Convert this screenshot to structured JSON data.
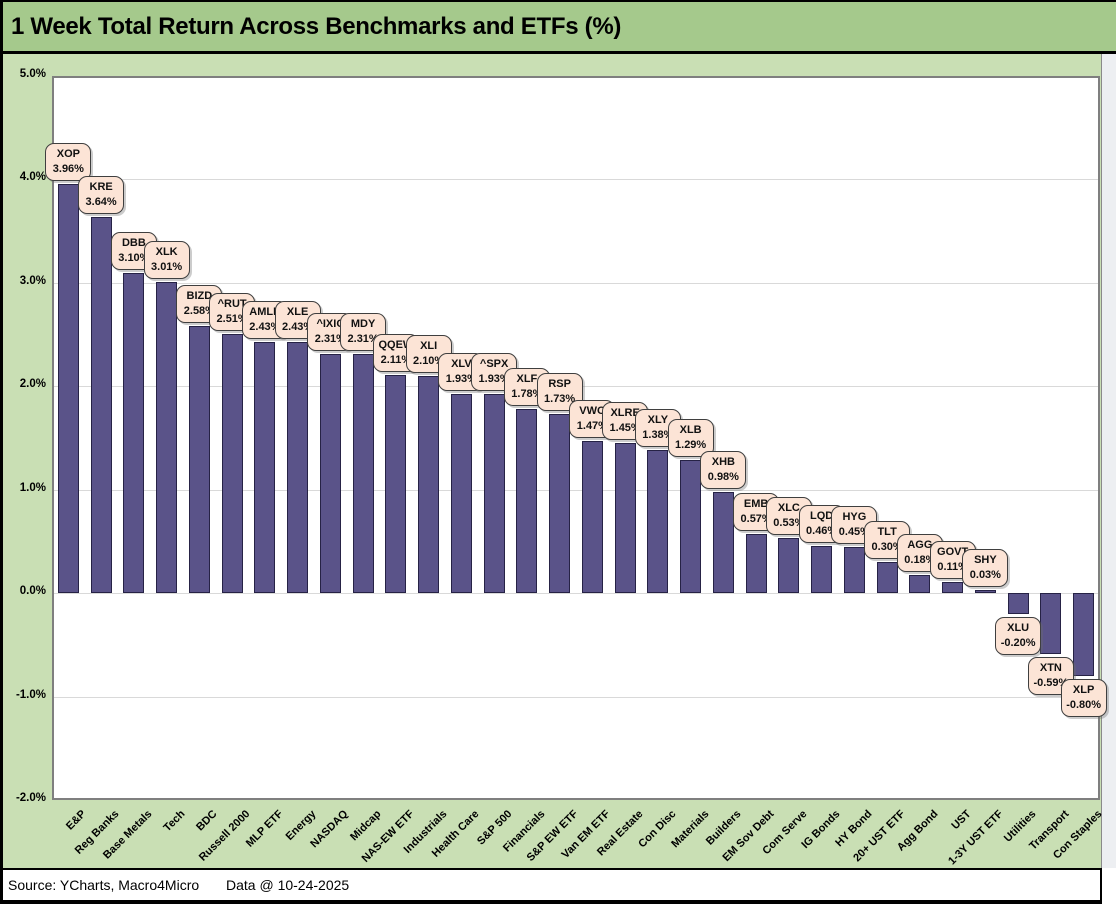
{
  "title": "1 Week Total Return Across Benchmarks and ETFs (%)",
  "footer": {
    "source": "Source: YCharts, Macro4Micro",
    "data_date": "Data @ 10-24-2025"
  },
  "colors": {
    "title_band_bg": "#a5c98c",
    "chart_bg": "#c9dfb4",
    "plot_bg": "#ffffff",
    "plot_border": "#7f7f7f",
    "gridline": "#d9d9d9",
    "bar_fill": "#5a5389",
    "bar_border": "#262245",
    "callout_bg": "#fce4d6",
    "callout_border": "#3f3f3f",
    "text": "#000000"
  },
  "chart_data": {
    "type": "bar",
    "title": "1 Week Total Return Across Benchmarks and ETFs (%)",
    "xlabel": "",
    "ylabel": "",
    "ylim": [
      -2.0,
      5.0
    ],
    "ytick_interval": 1.0,
    "ytick_labels": [
      "5.0%",
      "4.0%",
      "3.0%",
      "2.0%",
      "1.0%",
      "0.0%",
      "-1.0%",
      "-2.0%"
    ],
    "ytick_values": [
      5,
      4,
      3,
      2,
      1,
      0,
      -1,
      -2
    ],
    "grid": true,
    "legend": "none",
    "categories": [
      "E&P",
      "Reg Banks",
      "Base Metals",
      "Tech",
      "BDC",
      "Russell 2000",
      "MLP ETF",
      "Energy",
      "NASDAQ",
      "Midcap",
      "NAS-EW ETF",
      "Industrials",
      "Health Care",
      "S&P 500",
      "Financials",
      "S&P EW ETF",
      "Van EM ETF",
      "Real Estate",
      "Con Disc",
      "Materials",
      "Builders",
      "EM Sov Debt",
      "Com Serve",
      "IG Bonds",
      "HY Bond",
      "20+ UST ETF",
      "Agg Bond",
      "UST",
      "1-3Y UST ETF",
      "Utilities",
      "Transport",
      "Con Staples"
    ],
    "tickers": [
      "XOP",
      "KRE",
      "DBB",
      "XLK",
      "BIZD",
      "^RUT",
      "AMLP",
      "XLE",
      "^IXIC",
      "MDY",
      "QQEW",
      "XLI",
      "XLV",
      "^SPX",
      "XLF",
      "RSP",
      "VWO",
      "XLRE",
      "XLY",
      "XLB",
      "XHB",
      "EMB",
      "XLC",
      "LQD",
      "HYG",
      "TLT",
      "AGG",
      "GOVT",
      "SHY",
      "XLU",
      "XTN",
      "XLP"
    ],
    "values": [
      3.96,
      3.64,
      3.1,
      3.01,
      2.58,
      2.51,
      2.43,
      2.43,
      2.31,
      2.31,
      2.11,
      2.1,
      1.93,
      1.93,
      1.78,
      1.73,
      1.47,
      1.45,
      1.38,
      1.29,
      0.98,
      0.57,
      0.53,
      0.46,
      0.45,
      0.3,
      0.18,
      0.11,
      0.03,
      -0.2,
      -0.59,
      -0.8
    ],
    "value_labels": [
      "3.96%",
      "3.64%",
      "3.10%",
      "3.01%",
      "2.58%",
      "2.51%",
      "2.43%",
      "2.43%",
      "2.31%",
      "2.31%",
      "2.11%",
      "2.10%",
      "1.93%",
      "1.93%",
      "1.78%",
      "1.73%",
      "1.47%",
      "1.45%",
      "1.38%",
      "1.29%",
      "0.98%",
      "0.57%",
      "0.53%",
      "0.46%",
      "0.45%",
      "0.30%",
      "0.18%",
      "0.11%",
      "0.03%",
      "-0.20%",
      "-0.59%",
      "-0.80%"
    ]
  }
}
